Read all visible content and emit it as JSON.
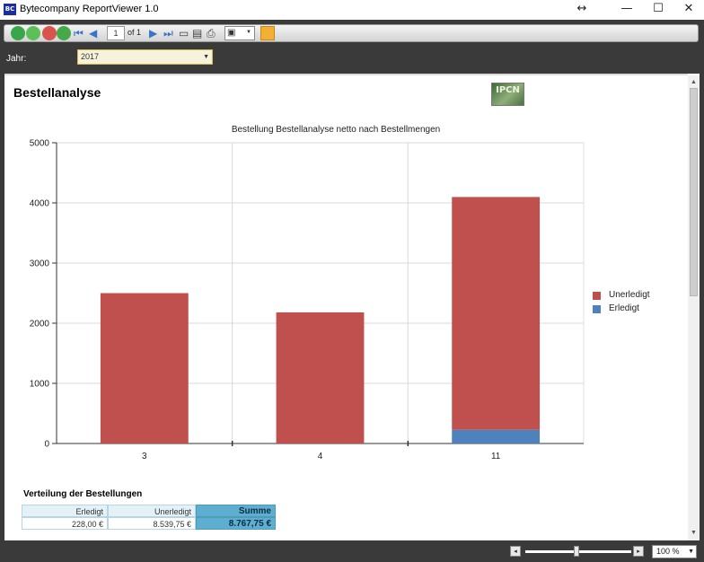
{
  "window": {
    "app_icon_text": "BC",
    "title": "Bytecompany ReportViewer 1.0",
    "resize_glyph": "↔",
    "minimize_glyph": "—",
    "maximize_glyph": "☐",
    "close_glyph": "✕"
  },
  "toolbar": {
    "page_current": "1",
    "page_of": "of 1",
    "icons": [
      "back-icon",
      "forward-icon",
      "stop-icon",
      "refresh-icon",
      "first-page-icon",
      "previous-page-icon",
      "next-page-icon",
      "last-page-icon",
      "print-layout-icon",
      "page-setup-icon",
      "print-icon",
      "export-icon",
      "find-icon"
    ]
  },
  "parameters": {
    "jahr_label": "Jahr:",
    "jahr_value": "2017"
  },
  "report": {
    "title": "Bestellanalyse",
    "logo_text": "IPCN",
    "summary": {
      "heading": "Verteilung der Bestellungen",
      "headers": [
        "Erledigt",
        "Unerledigt",
        "Summe"
      ],
      "values": [
        "228,00 €",
        "8.539,75 €",
        "8.767,75 €"
      ]
    }
  },
  "chart_data": {
    "type": "bar",
    "stacked": true,
    "title": "Bestellung Bestellanalyse netto nach Bestellmengen",
    "categories": [
      "3",
      "4",
      "11"
    ],
    "series": [
      {
        "name": "Erledigt",
        "color": "#4f81bd",
        "values": [
          0,
          0,
          228
        ]
      },
      {
        "name": "Unerledigt",
        "color": "#c0504d",
        "values": [
          2500,
          2180,
          3870
        ]
      }
    ],
    "legend_order": [
      "Unerledigt",
      "Erledigt"
    ],
    "legend_position": "right",
    "ylim": [
      0,
      5000
    ],
    "yticks": [
      "0",
      "1000",
      "2000",
      "3000",
      "4000",
      "5000"
    ],
    "grid": true
  },
  "statusbar": {
    "zoom": "100 %",
    "zoom_level_percent": 100
  }
}
